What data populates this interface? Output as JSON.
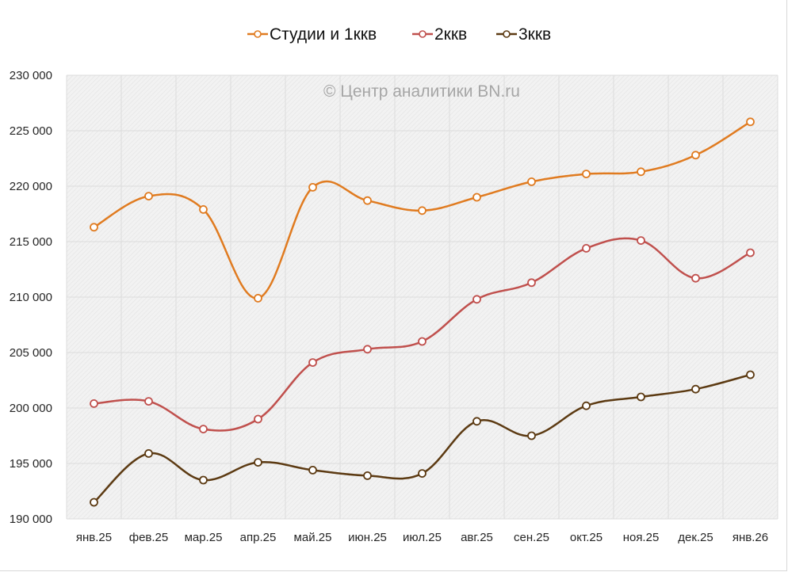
{
  "chart_data": {
    "type": "line",
    "title": "",
    "watermark": "© Центр аналитики BN.ru",
    "xlabel": "",
    "ylabel": "",
    "ylim": [
      190000,
      230000
    ],
    "ytick_step": 5000,
    "yticks": [
      "190 000",
      "195 000",
      "200 000",
      "205 000",
      "210 000",
      "215 000",
      "220 000",
      "225 000",
      "230 000"
    ],
    "grid": true,
    "legend_position": "top",
    "smooth": true,
    "categories": [
      "янв.25",
      "фев.25",
      "мар.25",
      "апр.25",
      "май.25",
      "июн.25",
      "июл.25",
      "авг.25",
      "сен.25",
      "окт.25",
      "ноя.25",
      "дек.25",
      "янв.26"
    ],
    "series": [
      {
        "name": "Студии и 1ккв",
        "color": "#e07b20",
        "values": [
          216300,
          219100,
          217900,
          209900,
          219900,
          218700,
          217800,
          219000,
          220400,
          221100,
          221300,
          222800,
          225800
        ]
      },
      {
        "name": "2ккв",
        "color": "#c0504d",
        "values": [
          200400,
          200600,
          198100,
          199000,
          204100,
          205300,
          206000,
          209800,
          211300,
          214400,
          215100,
          211700,
          214000
        ]
      },
      {
        "name": "3ккв",
        "color": "#5c3a12",
        "values": [
          191500,
          195900,
          193500,
          195100,
          194400,
          193900,
          194100,
          198800,
          197500,
          200200,
          201000,
          201700,
          203000
        ]
      }
    ]
  }
}
